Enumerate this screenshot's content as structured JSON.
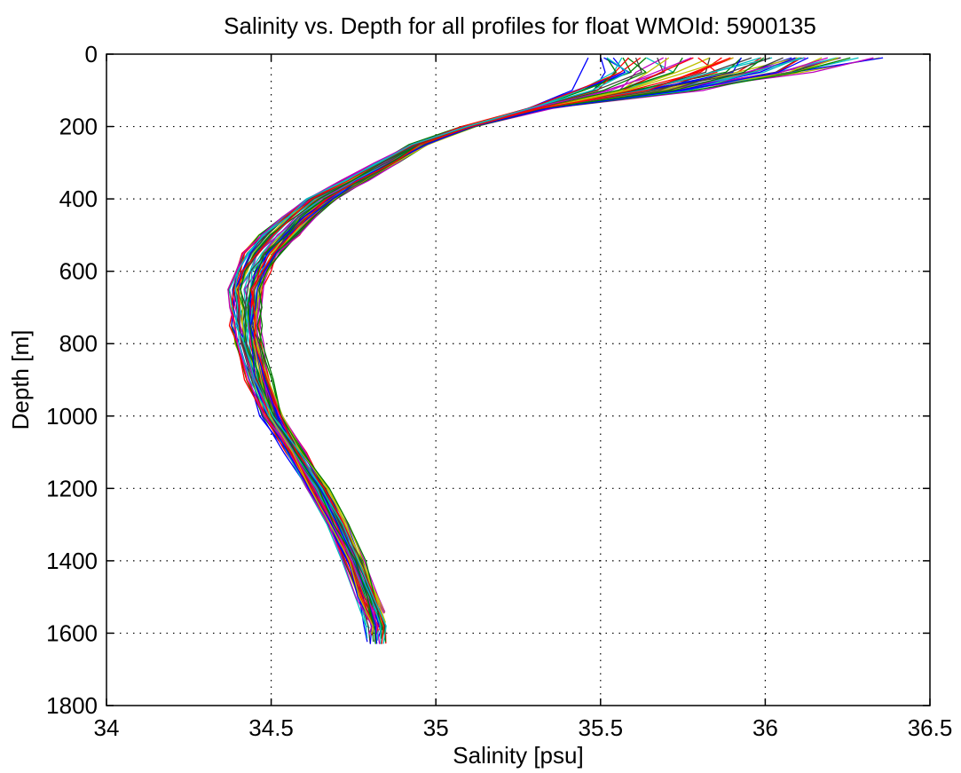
{
  "chart_data": {
    "type": "line",
    "title": "Salinity vs. Depth for all profiles for float WMOId: 5900135",
    "xlabel": "Salinity [psu]",
    "ylabel": "Depth [m]",
    "xlim": [
      34,
      36.5
    ],
    "ylim": [
      0,
      1800
    ],
    "y_reversed": true,
    "grid": true,
    "x_ticks": [
      "34",
      "34.5",
      "35",
      "35.5",
      "36",
      "36.5"
    ],
    "y_ticks": [
      "0",
      "200",
      "400",
      "600",
      "800",
      "1000",
      "1200",
      "1400",
      "1600",
      "1800"
    ],
    "series_colors": [
      "#0000ff",
      "#008000",
      "#ff0000",
      "#00bfbf",
      "#bf00bf",
      "#bfbf00",
      "#404040"
    ],
    "typical_profile": {
      "depth_m": [
        10,
        50,
        100,
        150,
        200,
        250,
        300,
        350,
        400,
        450,
        500,
        550,
        600,
        650,
        700,
        750,
        800,
        900,
        1000,
        1100,
        1200,
        1300,
        1400,
        1500,
        1580
      ],
      "salinity_psu": [
        35.75,
        35.72,
        35.55,
        35.3,
        35.1,
        34.95,
        34.85,
        34.75,
        34.65,
        34.58,
        34.52,
        34.47,
        34.44,
        34.42,
        34.42,
        34.42,
        34.43,
        34.46,
        34.5,
        34.57,
        34.64,
        34.7,
        34.75,
        34.79,
        34.82
      ]
    },
    "profile_count": 60
  }
}
